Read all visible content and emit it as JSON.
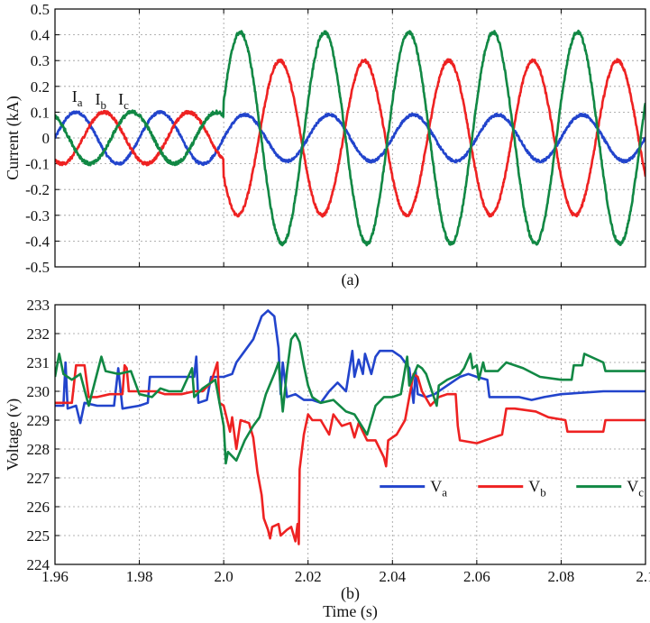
{
  "chart_data": [
    {
      "type": "line",
      "panel": "(a)",
      "xlabel": "",
      "ylabel": "Current (kA)",
      "xlim": [
        1.96,
        2.1
      ],
      "ylim": [
        -0.5,
        0.5
      ],
      "yticks": [
        "0.5",
        "0.4",
        "0.3",
        "0.2",
        "0.1",
        "0",
        "-0.1",
        "-0.2",
        "-0.3",
        "-0.4",
        "-0.5"
      ],
      "ytick_values": [
        0.5,
        0.4,
        0.3,
        0.2,
        0.1,
        0,
        -0.1,
        -0.2,
        -0.3,
        -0.4,
        -0.5
      ],
      "xtick_values": [
        1.96,
        1.98,
        2.0,
        2.02,
        2.04,
        2.06,
        2.08,
        2.1
      ],
      "grid": true,
      "annotations": [
        {
          "label": "I",
          "sub": "a",
          "x": 1.964,
          "y": 0.14
        },
        {
          "label": "I",
          "sub": "b",
          "x": 1.9695,
          "y": 0.13
        },
        {
          "label": "I",
          "sub": "c",
          "x": 1.975,
          "y": 0.13
        }
      ],
      "series": [
        {
          "name": "Ia",
          "color": "#2244cc",
          "pre": {
            "amplitude": 0.1,
            "phase_deg": 0
          },
          "post": {
            "amplitude": 0.09,
            "phase_deg": 0
          },
          "frequency_hz": 50,
          "fault_time": 2.0,
          "noise": 0.01
        },
        {
          "name": "Ib",
          "color": "#ee2222",
          "pre": {
            "amplitude": 0.1,
            "phase_deg": -120
          },
          "post": {
            "amplitude": 0.3,
            "phase_deg": -150
          },
          "frequency_hz": 50,
          "fault_time": 2.0,
          "noise": 0.012
        },
        {
          "name": "Ic",
          "color": "#118844",
          "pre": {
            "amplitude": 0.1,
            "phase_deg": 120
          },
          "post": {
            "amplitude": 0.41,
            "phase_deg": 20
          },
          "frequency_hz": 50,
          "fault_time": 2.0,
          "noise": 0.014
        }
      ]
    },
    {
      "type": "line",
      "panel": "(b)",
      "xlabel": "Time (s)",
      "ylabel": "Voltage (v)",
      "xlim": [
        1.96,
        2.1
      ],
      "ylim": [
        224,
        233
      ],
      "yticks": [
        "233",
        "232",
        "231",
        "230",
        "229",
        "228",
        "227",
        "226",
        "225",
        "224"
      ],
      "ytick_values": [
        233,
        232,
        231,
        230,
        229,
        228,
        227,
        226,
        225,
        224
      ],
      "xticks": [
        "1.96",
        "1.98",
        "2.0",
        "2.02",
        "2.04",
        "2.06",
        "2.08",
        "2.1"
      ],
      "xtick_values": [
        1.96,
        1.98,
        2.0,
        2.02,
        2.04,
        2.06,
        2.08,
        2.1
      ],
      "grid": true,
      "legend": {
        "placement": "bottom-right",
        "entries": [
          {
            "label": "V",
            "sub": "a",
            "color": "#2244cc"
          },
          {
            "label": "V",
            "sub": "b",
            "color": "#ee2222"
          },
          {
            "label": "V",
            "sub": "c",
            "color": "#118844"
          }
        ]
      },
      "series": [
        {
          "name": "Va",
          "color": "#2244cc",
          "points": [
            [
              1.96,
              229.5
            ],
            [
              1.962,
              229.5
            ],
            [
              1.9625,
              231.0
            ],
            [
              1.963,
              229.4
            ],
            [
              1.965,
              229.5
            ],
            [
              1.966,
              228.9
            ],
            [
              1.967,
              229.6
            ],
            [
              1.97,
              229.5
            ],
            [
              1.974,
              229.5
            ],
            [
              1.975,
              230.8
            ],
            [
              1.976,
              229.4
            ],
            [
              1.98,
              229.5
            ],
            [
              1.982,
              229.6
            ],
            [
              1.9825,
              230.5
            ],
            [
              1.99,
              230.5
            ],
            [
              1.993,
              230.5
            ],
            [
              1.9935,
              231.2
            ],
            [
              1.994,
              229.6
            ],
            [
              1.996,
              229.7
            ],
            [
              1.997,
              230.5
            ],
            [
              2.0,
              230.5
            ],
            [
              2.002,
              230.6
            ],
            [
              2.003,
              231.0
            ],
            [
              2.005,
              231.4
            ],
            [
              2.007,
              231.8
            ],
            [
              2.009,
              232.6
            ],
            [
              2.0105,
              232.8
            ],
            [
              2.012,
              232.6
            ],
            [
              2.013,
              231.5
            ],
            [
              2.0135,
              229.9
            ],
            [
              2.014,
              231.0
            ],
            [
              2.015,
              229.8
            ],
            [
              2.017,
              229.9
            ],
            [
              2.019,
              229.7
            ],
            [
              2.021,
              229.7
            ],
            [
              2.023,
              229.6
            ],
            [
              2.025,
              230.0
            ],
            [
              2.027,
              230.3
            ],
            [
              2.029,
              230.0
            ],
            [
              2.0305,
              231.4
            ],
            [
              2.031,
              230.5
            ],
            [
              2.032,
              231.1
            ],
            [
              2.033,
              230.6
            ],
            [
              2.0335,
              231.3
            ],
            [
              2.035,
              230.6
            ],
            [
              2.036,
              231.2
            ],
            [
              2.037,
              231.4
            ],
            [
              2.04,
              231.4
            ],
            [
              2.042,
              231.2
            ],
            [
              2.044,
              230.8
            ],
            [
              2.045,
              229.6
            ],
            [
              2.0455,
              230.7
            ],
            [
              2.046,
              229.9
            ],
            [
              2.048,
              229.8
            ],
            [
              2.05,
              229.9
            ],
            [
              2.053,
              230.2
            ],
            [
              2.056,
              230.5
            ],
            [
              2.058,
              230.6
            ],
            [
              2.06,
              230.5
            ],
            [
              2.0625,
              230.4
            ],
            [
              2.063,
              229.8
            ],
            [
              2.066,
              229.8
            ],
            [
              2.068,
              229.8
            ],
            [
              2.07,
              229.8
            ],
            [
              2.073,
              229.7
            ],
            [
              2.076,
              229.8
            ],
            [
              2.08,
              229.9
            ],
            [
              2.09,
              230.0
            ],
            [
              2.1,
              230.0
            ]
          ]
        },
        {
          "name": "Vb",
          "color": "#ee2222",
          "points": [
            [
              1.96,
              229.6
            ],
            [
              1.964,
              229.6
            ],
            [
              1.965,
              230.9
            ],
            [
              1.967,
              230.9
            ],
            [
              1.968,
              229.8
            ],
            [
              1.97,
              229.8
            ],
            [
              1.973,
              229.9
            ],
            [
              1.976,
              229.9
            ],
            [
              1.9765,
              230.9
            ],
            [
              1.977,
              230.8
            ],
            [
              1.9775,
              230.0
            ],
            [
              1.98,
              230.0
            ],
            [
              1.984,
              230.0
            ],
            [
              1.986,
              229.9
            ],
            [
              1.99,
              229.9
            ],
            [
              1.993,
              230.0
            ],
            [
              1.995,
              230.0
            ],
            [
              1.997,
              230.3
            ],
            [
              1.9985,
              231.0
            ],
            [
              1.999,
              229.6
            ],
            [
              2.0,
              229.5
            ],
            [
              2.0015,
              228.6
            ],
            [
              2.002,
              229.1
            ],
            [
              2.003,
              228.0
            ],
            [
              2.004,
              229.0
            ],
            [
              2.006,
              228.9
            ],
            [
              2.007,
              228.4
            ],
            [
              2.008,
              227.2
            ],
            [
              2.009,
              226.4
            ],
            [
              2.0095,
              225.6
            ],
            [
              2.0105,
              225.2
            ],
            [
              2.011,
              224.9
            ],
            [
              2.0115,
              225.3
            ],
            [
              2.013,
              225.4
            ],
            [
              2.0135,
              225.0
            ],
            [
              2.015,
              225.2
            ],
            [
              2.016,
              225.3
            ],
            [
              2.017,
              224.8
            ],
            [
              2.0175,
              225.4
            ],
            [
              2.0178,
              224.7
            ],
            [
              2.018,
              227.3
            ],
            [
              2.019,
              228.5
            ],
            [
              2.02,
              229.2
            ],
            [
              2.021,
              229.0
            ],
            [
              2.023,
              229.0
            ],
            [
              2.025,
              228.5
            ],
            [
              2.026,
              229.2
            ],
            [
              2.028,
              228.8
            ],
            [
              2.03,
              228.9
            ],
            [
              2.031,
              228.4
            ],
            [
              2.032,
              228.9
            ],
            [
              2.034,
              228.3
            ],
            [
              2.036,
              228.3
            ],
            [
              2.037,
              228.0
            ],
            [
              2.038,
              227.7
            ],
            [
              2.0385,
              227.4
            ],
            [
              2.039,
              228.3
            ],
            [
              2.041,
              228.5
            ],
            [
              2.043,
              229.0
            ],
            [
              2.045,
              230.6
            ],
            [
              2.046,
              230.5
            ],
            [
              2.047,
              230.0
            ],
            [
              2.049,
              229.5
            ],
            [
              2.051,
              229.8
            ],
            [
              2.053,
              229.9
            ],
            [
              2.055,
              229.9
            ],
            [
              2.0555,
              228.8
            ],
            [
              2.056,
              228.3
            ],
            [
              2.06,
              228.2
            ],
            [
              2.064,
              228.4
            ],
            [
              2.066,
              228.5
            ],
            [
              2.067,
              229.4
            ],
            [
              2.069,
              229.4
            ],
            [
              2.074,
              229.3
            ],
            [
              2.077,
              229.1
            ],
            [
              2.081,
              229.0
            ],
            [
              2.0815,
              228.6
            ],
            [
              2.09,
              228.6
            ],
            [
              2.0905,
              229.0
            ],
            [
              2.1,
              229.0
            ]
          ]
        },
        {
          "name": "Vc",
          "color": "#118844",
          "points": [
            [
              1.96,
              230.5
            ],
            [
              1.961,
              231.3
            ],
            [
              1.962,
              230.6
            ],
            [
              1.964,
              230.4
            ],
            [
              1.966,
              230.6
            ],
            [
              1.968,
              229.5
            ],
            [
              1.971,
              231.2
            ],
            [
              1.972,
              230.7
            ],
            [
              1.975,
              230.6
            ],
            [
              1.978,
              230.7
            ],
            [
              1.98,
              229.9
            ],
            [
              1.983,
              229.8
            ],
            [
              1.985,
              230.1
            ],
            [
              1.987,
              230.0
            ],
            [
              1.99,
              230.0
            ],
            [
              1.9925,
              230.8
            ],
            [
              1.993,
              229.8
            ],
            [
              1.995,
              230.1
            ],
            [
              1.998,
              230.4
            ],
            [
              2.0,
              228.8
            ],
            [
              2.0005,
              227.5
            ],
            [
              2.001,
              227.9
            ],
            [
              2.003,
              227.6
            ],
            [
              2.005,
              228.3
            ],
            [
              2.007,
              228.8
            ],
            [
              2.0085,
              229.1
            ],
            [
              2.01,
              229.9
            ],
            [
              2.012,
              230.6
            ],
            [
              2.013,
              231.0
            ],
            [
              2.014,
              229.3
            ],
            [
              2.015,
              230.7
            ],
            [
              2.016,
              231.8
            ],
            [
              2.017,
              232.0
            ],
            [
              2.018,
              231.7
            ],
            [
              2.019,
              230.9
            ],
            [
              2.02,
              230.2
            ],
            [
              2.021,
              229.8
            ],
            [
              2.023,
              229.6
            ],
            [
              2.026,
              229.7
            ],
            [
              2.029,
              229.3
            ],
            [
              2.031,
              229.2
            ],
            [
              2.034,
              228.5
            ],
            [
              2.036,
              229.5
            ],
            [
              2.038,
              229.8
            ],
            [
              2.04,
              229.8
            ],
            [
              2.042,
              229.9
            ],
            [
              2.0435,
              231.2
            ],
            [
              2.044,
              230.2
            ],
            [
              2.046,
              230.9
            ],
            [
              2.047,
              230.8
            ],
            [
              2.048,
              230.6
            ],
            [
              2.0505,
              229.5
            ],
            [
              2.051,
              230.2
            ],
            [
              2.053,
              230.4
            ],
            [
              2.056,
              230.6
            ],
            [
              2.057,
              230.8
            ],
            [
              2.0585,
              231.3
            ],
            [
              2.059,
              230.8
            ],
            [
              2.06,
              230.9
            ],
            [
              2.0605,
              230.4
            ],
            [
              2.0615,
              231.0
            ],
            [
              2.062,
              230.7
            ],
            [
              2.065,
              230.7
            ],
            [
              2.067,
              231.0
            ],
            [
              2.071,
              230.8
            ],
            [
              2.075,
              230.5
            ],
            [
              2.08,
              230.4
            ],
            [
              2.0825,
              230.4
            ],
            [
              2.083,
              230.9
            ],
            [
              2.085,
              230.9
            ],
            [
              2.0855,
              231.3
            ],
            [
              2.09,
              231.0
            ],
            [
              2.0905,
              230.7
            ],
            [
              2.1,
              230.7
            ]
          ]
        }
      ]
    }
  ]
}
